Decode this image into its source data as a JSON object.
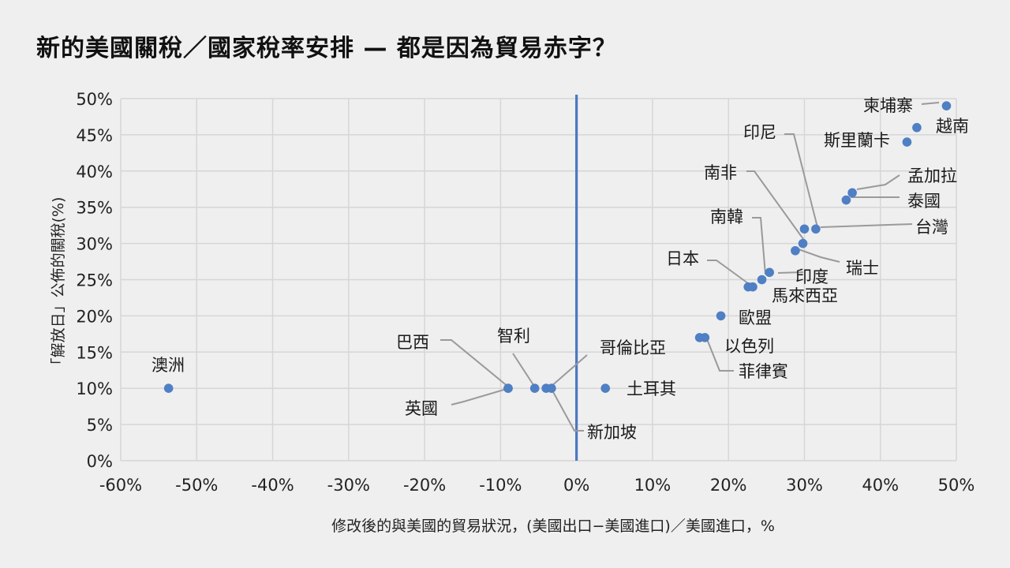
{
  "title": "新的美國關稅／國家稅率安排 — 都是因為貿易赤字？",
  "colors": {
    "point": "#4f7fc4",
    "zero_line": "#4a78c0",
    "grid": "#d6d6d6",
    "leader": "#9a9a9a",
    "background": "#efefef"
  },
  "chart_data": {
    "type": "scatter",
    "xlabel": "修改後的與美國的貿易狀況，(美國出口−美國進口)／美國進口，%",
    "ylabel": "「解放日」公佈的關稅(%)",
    "xlim": [
      -60,
      50
    ],
    "ylim": [
      0,
      50
    ],
    "x_ticks": [
      -60,
      -50,
      -40,
      -30,
      -20,
      -10,
      0,
      10,
      20,
      30,
      40,
      50
    ],
    "y_ticks": [
      0,
      5,
      10,
      15,
      20,
      25,
      30,
      35,
      40,
      45,
      50
    ],
    "x_tick_labels": [
      "-60%",
      "-50%",
      "-40%",
      "-30%",
      "-20%",
      "-10%",
      "0%",
      "10%",
      "20%",
      "30%",
      "40%",
      "50%"
    ],
    "y_tick_labels": [
      "0%",
      "5%",
      "10%",
      "15%",
      "20%",
      "25%",
      "30%",
      "35%",
      "40%",
      "45%",
      "50%"
    ],
    "grid": true,
    "zero_line_x": 0,
    "points": [
      {
        "name": "柬埔寨",
        "x": 48.7,
        "y": 49
      },
      {
        "name": "越南",
        "x": 44.8,
        "y": 46
      },
      {
        "name": "斯里蘭卡",
        "x": 43.5,
        "y": 44
      },
      {
        "name": "孟加拉",
        "x": 36.3,
        "y": 37
      },
      {
        "name": "泰國",
        "x": 35.5,
        "y": 36
      },
      {
        "name": "台灣",
        "x": 31.5,
        "y": 32
      },
      {
        "name": "印尼",
        "x": 30.0,
        "y": 32
      },
      {
        "name": "南非",
        "x": 29.8,
        "y": 30
      },
      {
        "name": "瑞士",
        "x": 28.8,
        "y": 29
      },
      {
        "name": "印度",
        "x": 25.4,
        "y": 26
      },
      {
        "name": "南韓",
        "x": 24.4,
        "y": 25
      },
      {
        "name": "日本",
        "x": 22.6,
        "y": 24
      },
      {
        "name": "馬來西亞",
        "x": 23.2,
        "y": 24
      },
      {
        "name": "歐盟",
        "x": 19.0,
        "y": 20
      },
      {
        "name": "以色列",
        "x": 16.2,
        "y": 17
      },
      {
        "name": "菲律賓",
        "x": 16.9,
        "y": 17
      },
      {
        "name": "土耳其",
        "x": 3.8,
        "y": 10
      },
      {
        "name": "巴西",
        "x": -9.0,
        "y": 10
      },
      {
        "name": "英國",
        "x": -9.0,
        "y": 10
      },
      {
        "name": "智利",
        "x": -5.5,
        "y": 10
      },
      {
        "name": "哥倫比亞",
        "x": -4.0,
        "y": 10
      },
      {
        "name": "新加坡",
        "x": -3.3,
        "y": 10
      },
      {
        "name": "澳洲",
        "x": -53.7,
        "y": 10
      }
    ]
  }
}
